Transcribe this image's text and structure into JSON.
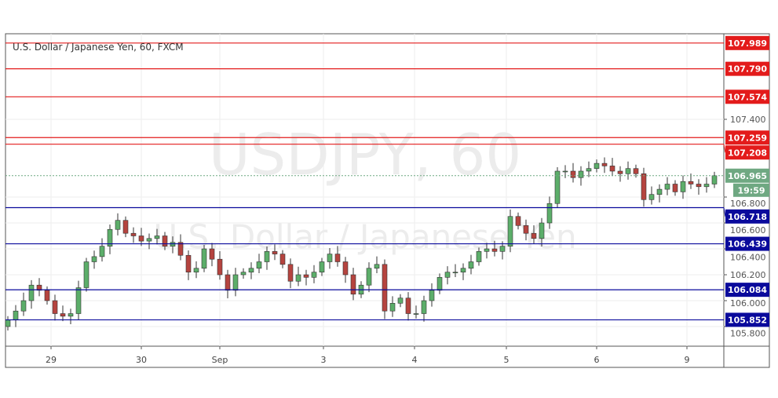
{
  "header": {
    "title": "U.S. Dollar / Japanese Yen, 60, FXCM"
  },
  "watermark": {
    "symbol": "USDJPY, 60",
    "description": "U.S. Dollar / Japanese Yen"
  },
  "chart_data": {
    "type": "candlestick",
    "title": "U.S. Dollar / Japanese Yen, 60, FXCM",
    "interval": "60",
    "ylim": [
      105.72,
      108.05
    ],
    "y_ticks": [
      "107.400",
      "106.800",
      "106.600",
      "106.400",
      "106.200",
      "106.000",
      "105.800"
    ],
    "x_ticks": [
      "29",
      "30",
      "Sep",
      "3",
      "4",
      "5",
      "6",
      "9"
    ],
    "open_first": 105.8,
    "closes": [
      105.85,
      105.92,
      106.0,
      106.12,
      106.08,
      106.0,
      105.9,
      105.88,
      105.9,
      106.1,
      106.3,
      106.34,
      106.42,
      106.55,
      106.62,
      106.52,
      106.5,
      106.46,
      106.48,
      106.5,
      106.42,
      106.45,
      106.35,
      106.22,
      106.25,
      106.4,
      106.32,
      106.2,
      106.08,
      106.2,
      106.22,
      106.25,
      106.3,
      106.38,
      106.36,
      106.28,
      106.15,
      106.2,
      106.18,
      106.22,
      106.3,
      106.36,
      106.3,
      106.2,
      106.05,
      106.12,
      106.25,
      106.28,
      105.92,
      105.98,
      106.02,
      105.9,
      105.9,
      106.0,
      106.08,
      106.18,
      106.22,
      106.22,
      106.25,
      106.3,
      106.38,
      106.4,
      106.38,
      106.42,
      106.65,
      106.58,
      106.52,
      106.48,
      106.6,
      106.75,
      107.0,
      107.0,
      106.95,
      107.0,
      107.02,
      107.06,
      107.04,
      107.0,
      106.98,
      107.02,
      106.98,
      106.78,
      106.82,
      106.86,
      106.9,
      106.84,
      106.92,
      106.9,
      106.88,
      106.9,
      106.965
    ],
    "current_price": {
      "value": "106.965",
      "countdown": "19:59"
    },
    "resistance_levels": [
      "107.989",
      "107.790",
      "107.574",
      "107.259",
      "107.208"
    ],
    "support_levels": [
      "106.718",
      "106.439",
      "106.084",
      "105.852"
    ],
    "colors": {
      "resistance": "#e31b1b",
      "support": "#0a0a9c",
      "up": "#5cae6a",
      "down": "#b5443f",
      "current": "#6fa882"
    }
  }
}
